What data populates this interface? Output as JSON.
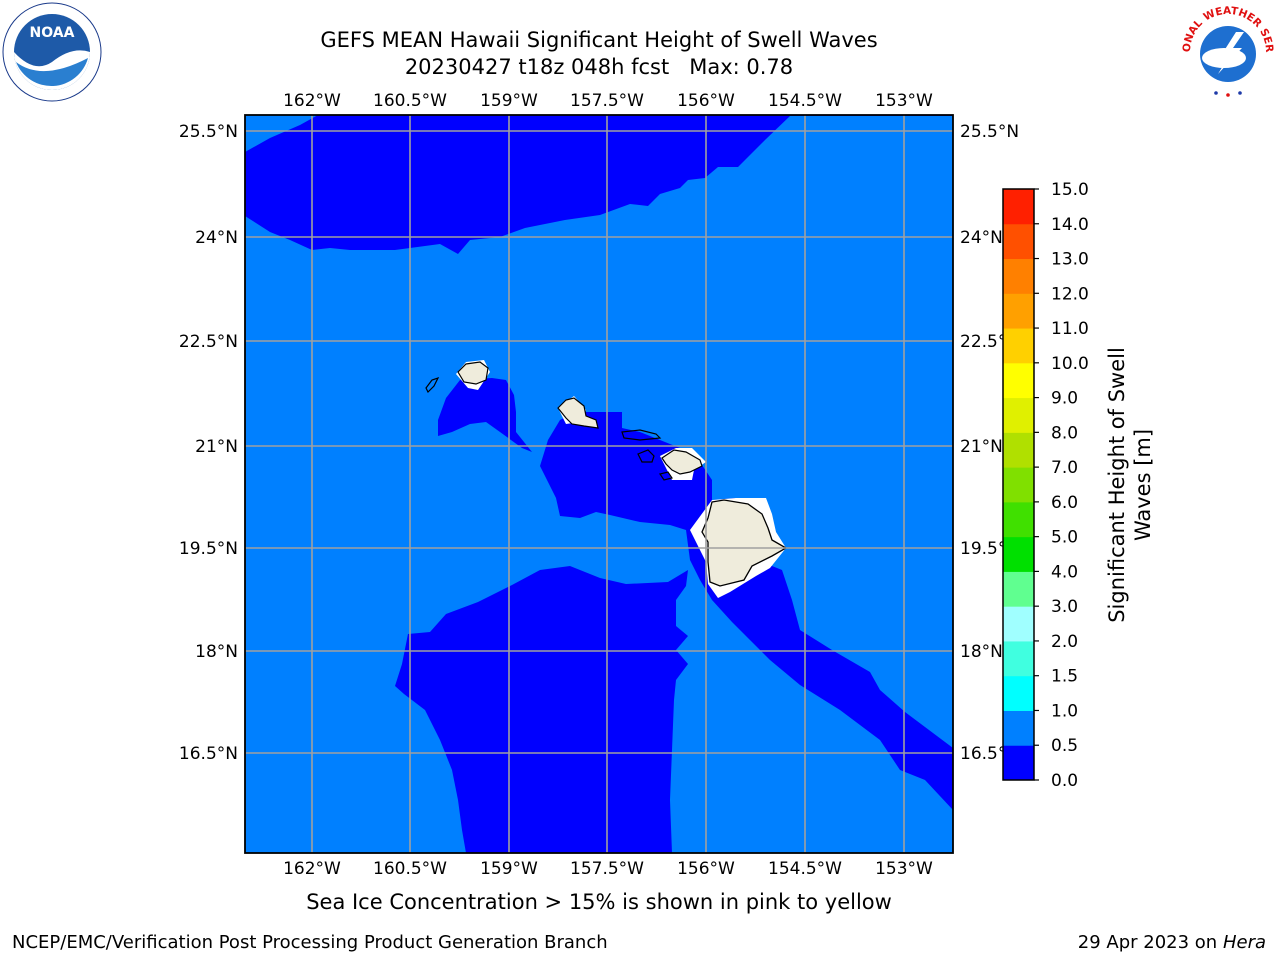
{
  "header": {
    "title_line1": "GEFS MEAN Hawaii Significant Height of Swell Waves",
    "title_line2": "20230427 t18z 048h fcst   Max: 0.78"
  },
  "logos": {
    "left": {
      "icon": "noaa-logo-icon",
      "text": "NOAA"
    },
    "right": {
      "icon": "nws-logo-icon",
      "text": "NATIONAL WEATHER SERVICE"
    }
  },
  "map": {
    "lon_labels": [
      "162°W",
      "160.5°W",
      "159°W",
      "157.5°W",
      "156°W",
      "154.5°W",
      "153°W"
    ],
    "lat_labels": [
      "25.5°N",
      "24°N",
      "22.5°N",
      "21°N",
      "19.5°N",
      "18°N",
      "16.5°N"
    ],
    "colors": {
      "band_0_0p5": "#0000ff",
      "band_0p5_1": "#0080ff",
      "land": "#efecdc",
      "grid": "#a0a0a0"
    }
  },
  "colorbar": {
    "label_line1": "Significant Height of Swell",
    "label_line2": "Waves [m]",
    "tick_labels": [
      "0.0",
      "0.5",
      "1.0",
      "1.5",
      "2.0",
      "3.0",
      "4.0",
      "5.0",
      "6.0",
      "7.0",
      "8.0",
      "9.0",
      "10.0",
      "11.0",
      "12.0",
      "13.0",
      "14.0",
      "15.0"
    ],
    "colors": [
      "#0000ff",
      "#0080ff",
      "#00ffff",
      "#40ffe0",
      "#a0ffff",
      "#60ff90",
      "#00e000",
      "#40e000",
      "#80e000",
      "#b0e000",
      "#e0f000",
      "#ffff00",
      "#ffd000",
      "#ffa000",
      "#ff8000",
      "#ff5000",
      "#ff2000"
    ]
  },
  "footer": {
    "note": "Sea Ice Concentration > 15% is shown in pink to yellow",
    "credit_left": "NCEP/EMC/Verification Post Processing Product Generation Branch",
    "credit_right_date": "29 Apr 2023 on ",
    "credit_right_host": "Hera"
  }
}
